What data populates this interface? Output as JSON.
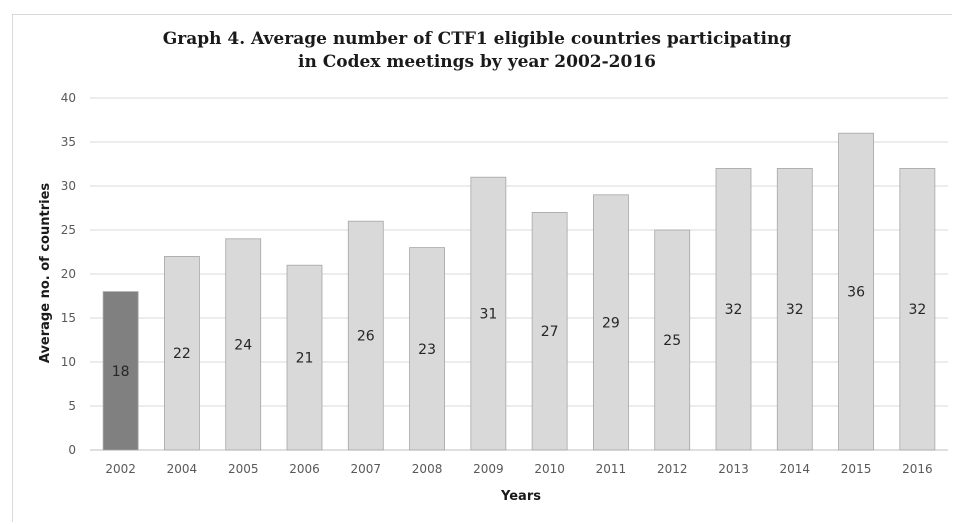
{
  "chart_data": {
    "type": "bar",
    "title_lines": [
      "Graph 4. Average number of  CTF1 eligible countries participating",
      "in Codex meetings by year 2002-2016"
    ],
    "xlabel": "Years",
    "ylabel": "Average no. of countries",
    "ylim": [
      0,
      40
    ],
    "yticks": [
      "0",
      "5",
      "10",
      "15",
      "20",
      "25",
      "30",
      "35",
      "40"
    ],
    "categories": [
      "2002",
      "2004",
      "2005",
      "2006",
      "2007",
      "2008",
      "2009",
      "2010",
      "2011",
      "2012",
      "2013",
      "2014",
      "2015",
      "2016"
    ],
    "values": [
      18,
      22,
      24,
      21,
      26,
      23,
      31,
      27,
      29,
      25,
      32,
      32,
      36,
      32
    ],
    "bar_colors": [
      "#808080",
      "#d9d9d9",
      "#d9d9d9",
      "#d9d9d9",
      "#d9d9d9",
      "#d9d9d9",
      "#d9d9d9",
      "#d9d9d9",
      "#d9d9d9",
      "#d9d9d9",
      "#d9d9d9",
      "#d9d9d9",
      "#d9d9d9",
      "#d9d9d9"
    ],
    "grid": true,
    "legend": "none"
  }
}
